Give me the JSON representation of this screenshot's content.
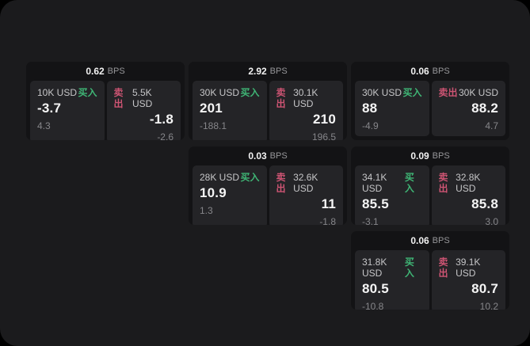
{
  "labels": {
    "buy": "买入",
    "sell": "卖出",
    "bps_unit": "BPS"
  },
  "colors": {
    "buy": "#3fb575",
    "sell": "#cd5473",
    "background": "#000000",
    "panel": "#1b1b1d",
    "card": "#131315",
    "tile": "#242427"
  },
  "cards": [
    {
      "bps": "0.62",
      "buy": {
        "amount": "10K USD",
        "price": "-3.7",
        "change": "4.3"
      },
      "sell": {
        "amount": "5.5K USD",
        "price": "-1.8",
        "change": "-2.6"
      }
    },
    {
      "bps": "2.92",
      "buy": {
        "amount": "30K USD",
        "price": "201",
        "change": "-188.1"
      },
      "sell": {
        "amount": "30.1K USD",
        "price": "210",
        "change": "196.5"
      }
    },
    {
      "bps": "0.06",
      "buy": {
        "amount": "30K USD",
        "price": "88",
        "change": "-4.9"
      },
      "sell": {
        "amount": "30K USD",
        "price": "88.2",
        "change": "4.7"
      }
    },
    {
      "bps": "0.03",
      "buy": {
        "amount": "28K USD",
        "price": "10.9",
        "change": "1.3"
      },
      "sell": {
        "amount": "32.6K USD",
        "price": "11",
        "change": "-1.8"
      }
    },
    {
      "bps": "0.09",
      "buy": {
        "amount": "34.1K USD",
        "price": "85.5",
        "change": "-3.1"
      },
      "sell": {
        "amount": "32.8K USD",
        "price": "85.8",
        "change": "3.0"
      }
    },
    {
      "bps": "0.06",
      "buy": {
        "amount": "31.8K USD",
        "price": "80.5",
        "change": "-10.8"
      },
      "sell": {
        "amount": "39.1K USD",
        "price": "80.7",
        "change": "10.2"
      }
    }
  ]
}
